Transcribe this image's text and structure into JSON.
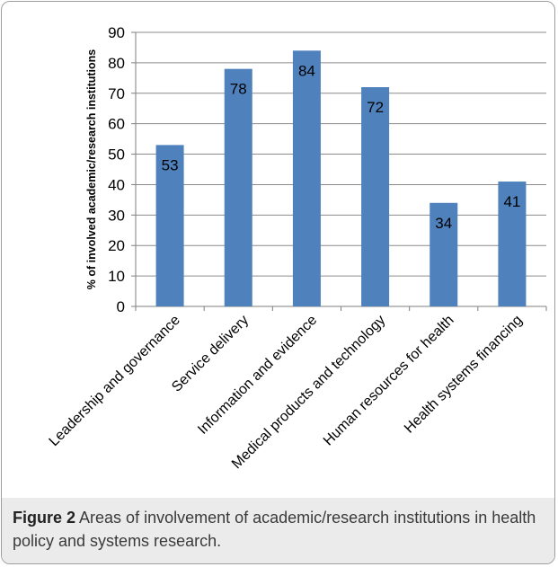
{
  "figure": {
    "caption_label": "Figure 2",
    "caption_text": "Areas of involvement of academic/research institutions in health policy and systems research."
  },
  "chart_data": {
    "type": "bar",
    "title": "",
    "ylabel": "% of involved academic/research institutions",
    "xlabel": "",
    "categories": [
      "Leadership and governance",
      "Service delivery",
      "Information and evidence",
      "Medical products and technology",
      "Human resources for health",
      "Health systems financing"
    ],
    "values": [
      53,
      78,
      84,
      72,
      34,
      41
    ],
    "data_labels": [
      "53",
      "78",
      "84",
      "72",
      "34",
      "41"
    ],
    "ylim": [
      0,
      90
    ],
    "yticks": [
      0,
      10,
      20,
      30,
      40,
      50,
      60,
      70,
      80,
      90
    ],
    "grid": true,
    "legend": "none",
    "bar_color": "#4f81bd",
    "grid_color": "#8c8c8c"
  }
}
